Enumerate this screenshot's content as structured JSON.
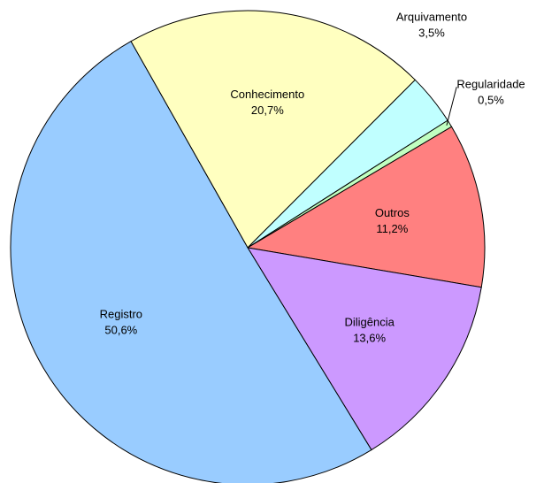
{
  "chart_data": {
    "type": "pie",
    "categories": [
      "Conhecimento",
      "Arquivamento",
      "Regularidade",
      "Outros",
      "Diligência",
      "Registro"
    ],
    "values": [
      20.7,
      3.5,
      0.5,
      11.2,
      13.6,
      50.6
    ],
    "value_labels": [
      "20,7%",
      "3,5%",
      "0,5%",
      "11,2%",
      "13,6%",
      "50,6%"
    ],
    "colors": [
      "#ffffc0",
      "#c0ffff",
      "#c0ffc0",
      "#ff8080",
      "#cc99ff",
      "#99ccff"
    ]
  }
}
